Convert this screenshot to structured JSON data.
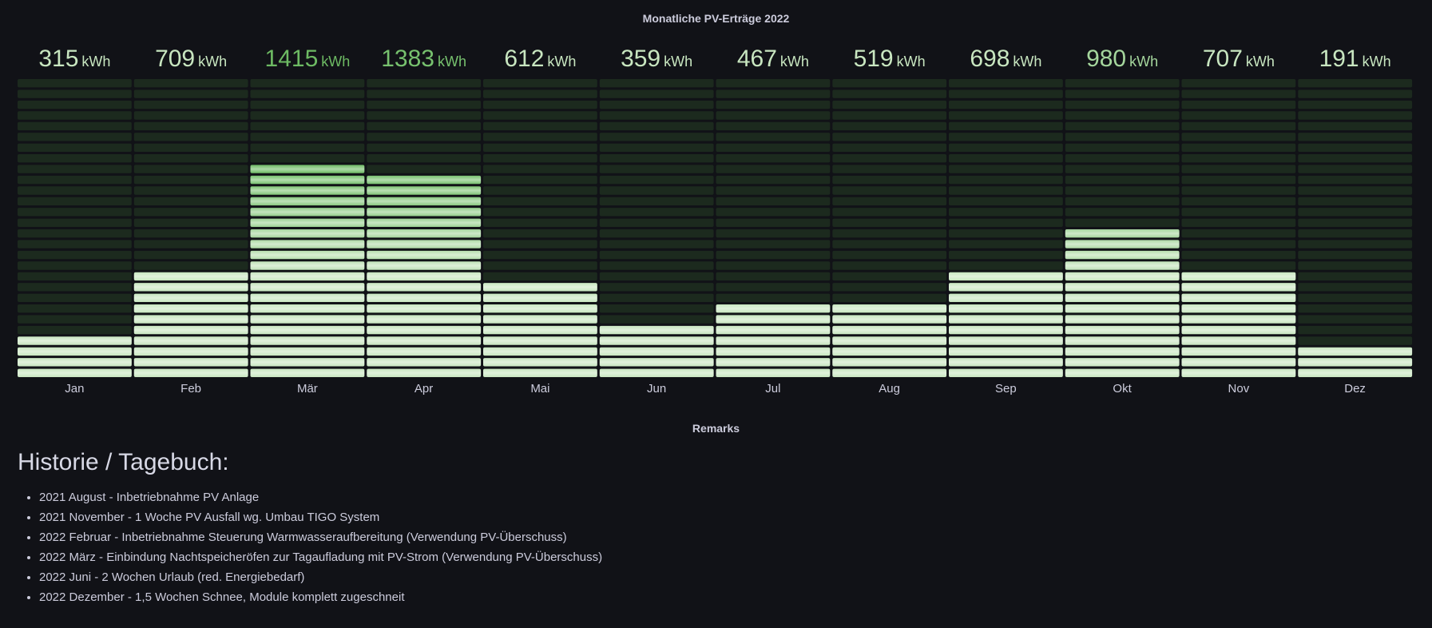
{
  "panels": {
    "chart_title": "Monatliche PV-Erträge 2022",
    "remarks_title": "Remarks"
  },
  "history": {
    "heading": "Historie / Tagebuch:",
    "items": [
      "2021 August - Inbetriebnahme PV Anlage",
      "2021 November - 1 Woche PV Ausfall wg. Umbau TIGO System",
      "2022 Februar - Inbetriebnahme Steuerung Warmwasseraufbereitung (Verwendung PV-Überschuss)",
      "2022 März - Einbindung Nachtspeicheröfen zur Tagaufladung mit PV-Strom (Verwendung PV-Überschuss)",
      "2022 Juni - 2 Wochen Urlaub (red. Energiebedarf)",
      "2022 Dezember - 1,5 Wochen Schnee, Module komplett zugeschneit"
    ]
  },
  "chart_data": {
    "type": "bar",
    "style": "bar-gauge-lcd",
    "title": "Monatliche PV-Erträge 2022",
    "unit": "kWh",
    "ymax": 2000,
    "segments": 28,
    "categories": [
      "Jan",
      "Feb",
      "Mär",
      "Apr",
      "Mai",
      "Jun",
      "Jul",
      "Aug",
      "Sep",
      "Okt",
      "Nov",
      "Dez"
    ],
    "values": [
      315,
      709,
      1415,
      1383,
      612,
      359,
      467,
      519,
      698,
      980,
      707,
      191
    ],
    "colors": {
      "background": "#111217",
      "empty_segment": "#1c2a1e",
      "light_green": "#c8e6c0",
      "mid_green": "#73bf69",
      "dark_green": "#37872d",
      "label": "#ccccdc"
    }
  }
}
